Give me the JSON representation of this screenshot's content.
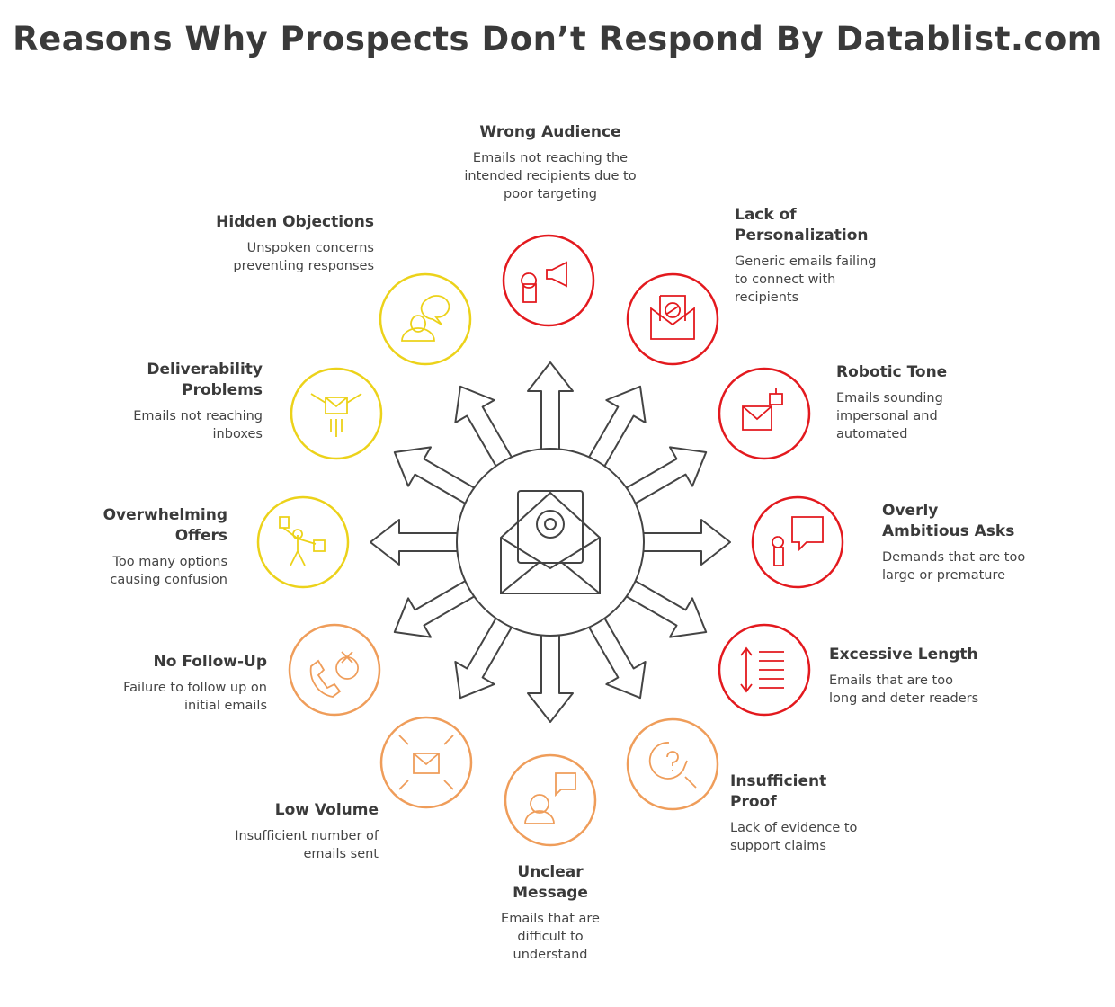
{
  "header": {
    "title": "Reasons Why Prospects Don’t Respond By Datablist.com"
  },
  "nodes": [
    {
      "title": "Wrong Audience",
      "description": "Emails not reaching the intended recipients due to poor targeting"
    },
    {
      "title": "Lack of Personalization",
      "description": "Generic emails failing to connect with recipients"
    },
    {
      "title": "Robotic Tone",
      "description": "Emails sounding impersonal and automated"
    },
    {
      "title": "Overly Ambitious Asks",
      "description": "Demands that are too large or premature"
    },
    {
      "title": "Excessive Length",
      "description": "Emails that are too long and deter readers"
    },
    {
      "title": "Insufficient Proof",
      "description": "Lack of evidence to support claims"
    },
    {
      "title": "Unclear Message",
      "description": "Emails that are difficult to understand"
    },
    {
      "title": "Low Volume",
      "description": "Insufficient number of emails sent"
    },
    {
      "title": "No Follow-Up",
      "description": "Failure to follow up on initial emails"
    },
    {
      "title": "Overwhelming Offers",
      "description": "Too many options causing confusion"
    },
    {
      "title": "Deliverability Problems",
      "description": "Emails not reaching inboxes"
    },
    {
      "title": "Hidden Objections",
      "description": "Unspoken concerns preventing responses"
    }
  ]
}
